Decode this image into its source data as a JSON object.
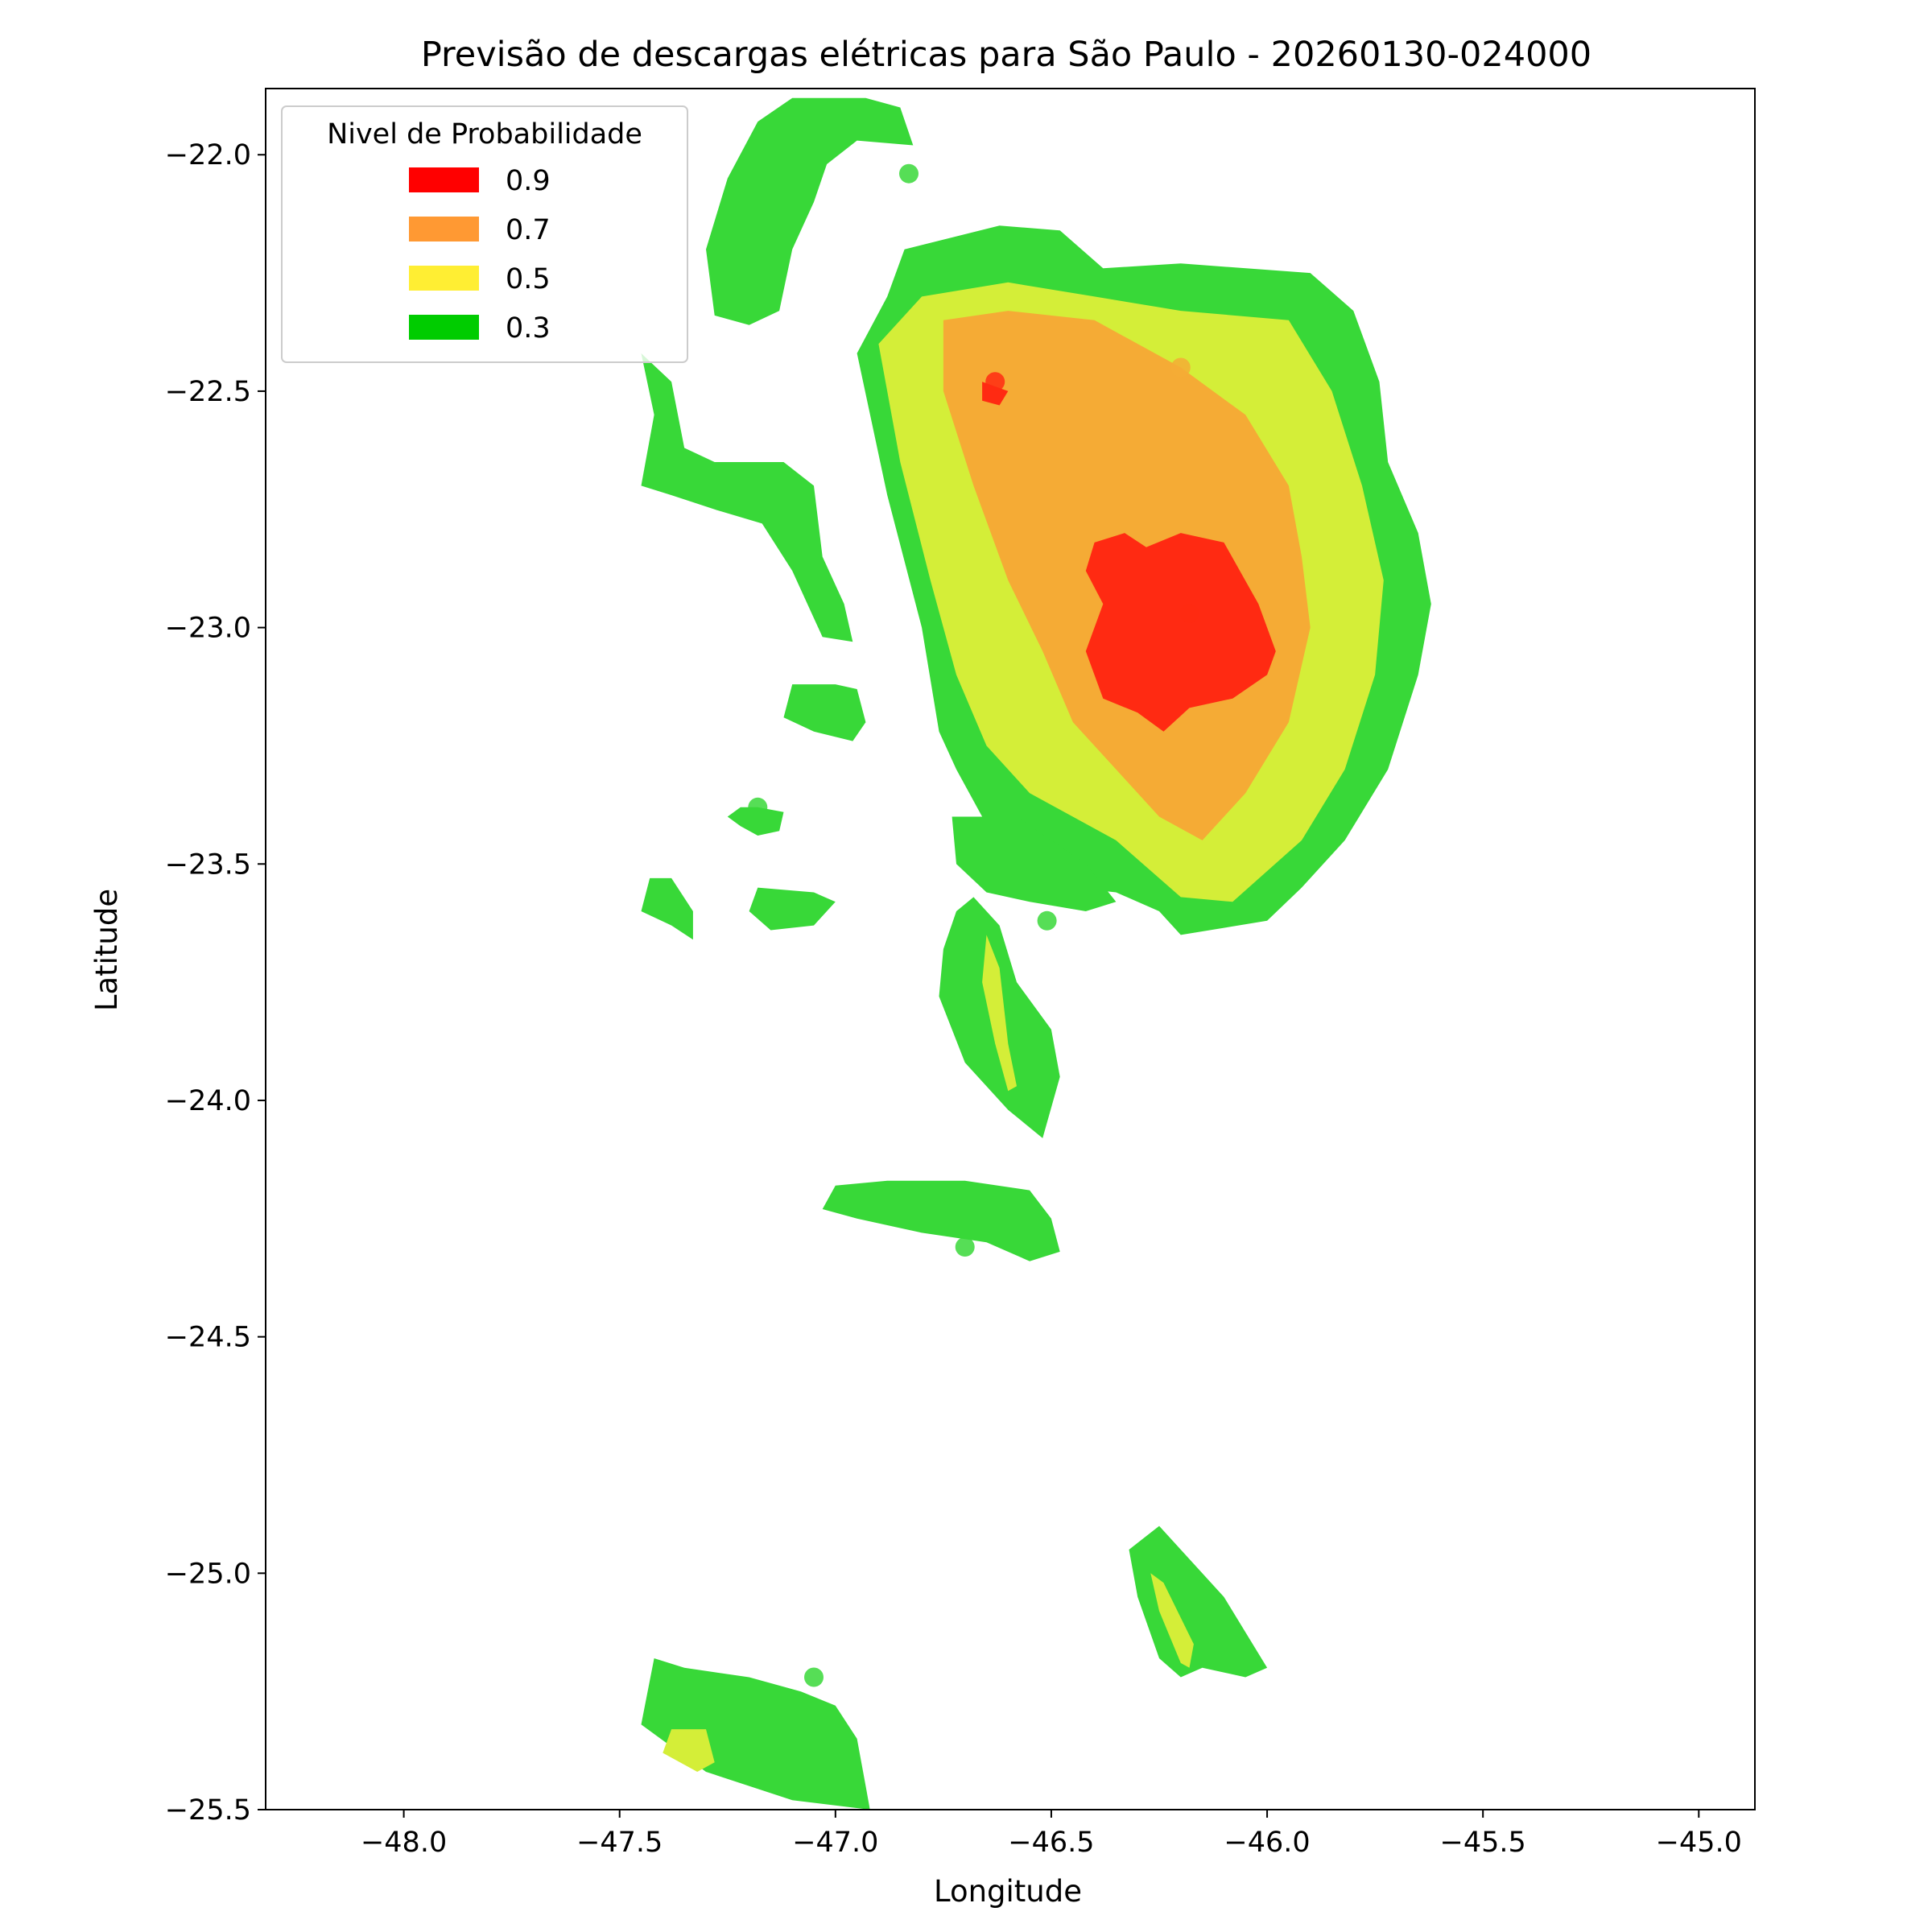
{
  "title": "Previsão de descargas elétricas para São Paulo - 20260130-024000",
  "xlabel": "Longitude",
  "ylabel": "Latitude",
  "legend": {
    "title": "Nivel de Probabilidade",
    "entries": [
      {
        "label": "0.9",
        "color": "#ff0000"
      },
      {
        "label": "0.7",
        "color": "#ff9933"
      },
      {
        "label": "0.5",
        "color": "#ffee33"
      },
      {
        "label": "0.3",
        "color": "#00cc00"
      }
    ]
  },
  "chart_data": {
    "type": "map",
    "xlim": [
      -48.32,
      -44.87
    ],
    "ylim": [
      -25.5,
      -21.86
    ],
    "xticks": [
      {
        "value": -48.0,
        "label": "−48.0"
      },
      {
        "value": -47.5,
        "label": "−47.5"
      },
      {
        "value": -47.0,
        "label": "−47.0"
      },
      {
        "value": -46.5,
        "label": "−46.5"
      },
      {
        "value": -46.0,
        "label": "−46.0"
      },
      {
        "value": -45.5,
        "label": "−45.5"
      },
      {
        "value": -45.0,
        "label": "−45.0"
      }
    ],
    "yticks": [
      {
        "value": -22.0,
        "label": "−22.0"
      },
      {
        "value": -22.5,
        "label": "−22.5"
      },
      {
        "value": -23.0,
        "label": "−23.0"
      },
      {
        "value": -23.5,
        "label": "−23.5"
      },
      {
        "value": -24.0,
        "label": "−24.0"
      },
      {
        "value": -24.5,
        "label": "−24.5"
      },
      {
        "value": -25.0,
        "label": "−25.0"
      },
      {
        "value": -25.5,
        "label": "−25.5"
      }
    ],
    "fill_colors": {
      "0.3": "#38d838",
      "0.5": "#d4ee38",
      "0.7": "#f5ab35",
      "0.9": "#ff2a12"
    },
    "regions": [
      {
        "level": "0.3",
        "points": [
          [
            -46.84,
            -22.2
          ],
          [
            -46.62,
            -22.15
          ],
          [
            -46.48,
            -22.16
          ],
          [
            -46.38,
            -22.24
          ],
          [
            -46.2,
            -22.23
          ],
          [
            -45.9,
            -22.25
          ],
          [
            -45.8,
            -22.33
          ],
          [
            -45.74,
            -22.48
          ],
          [
            -45.72,
            -22.65
          ],
          [
            -45.65,
            -22.8
          ],
          [
            -45.62,
            -22.95
          ],
          [
            -45.65,
            -23.1
          ],
          [
            -45.72,
            -23.3
          ],
          [
            -45.82,
            -23.45
          ],
          [
            -45.92,
            -23.55
          ],
          [
            -46.0,
            -23.62
          ],
          [
            -46.2,
            -23.65
          ],
          [
            -46.25,
            -23.6
          ],
          [
            -46.35,
            -23.56
          ],
          [
            -46.45,
            -23.55
          ],
          [
            -46.55,
            -23.56
          ],
          [
            -46.62,
            -23.52
          ],
          [
            -46.66,
            -23.4
          ],
          [
            -46.72,
            -23.3
          ],
          [
            -46.76,
            -23.22
          ],
          [
            -46.8,
            -23.0
          ],
          [
            -46.88,
            -22.72
          ],
          [
            -46.95,
            -22.42
          ],
          [
            -46.88,
            -22.3
          ]
        ]
      },
      {
        "level": "0.5",
        "points": [
          [
            -46.8,
            -22.3
          ],
          [
            -46.6,
            -22.27
          ],
          [
            -46.4,
            -22.3
          ],
          [
            -46.2,
            -22.33
          ],
          [
            -45.95,
            -22.35
          ],
          [
            -45.85,
            -22.5
          ],
          [
            -45.78,
            -22.7
          ],
          [
            -45.73,
            -22.9
          ],
          [
            -45.75,
            -23.1
          ],
          [
            -45.82,
            -23.3
          ],
          [
            -45.92,
            -23.45
          ],
          [
            -46.08,
            -23.58
          ],
          [
            -46.2,
            -23.57
          ],
          [
            -46.35,
            -23.45
          ],
          [
            -46.55,
            -23.35
          ],
          [
            -46.65,
            -23.25
          ],
          [
            -46.72,
            -23.1
          ],
          [
            -46.78,
            -22.9
          ],
          [
            -46.85,
            -22.65
          ],
          [
            -46.9,
            -22.4
          ]
        ]
      },
      {
        "level": "0.7",
        "points": [
          [
            -46.75,
            -22.35
          ],
          [
            -46.6,
            -22.33
          ],
          [
            -46.4,
            -22.35
          ],
          [
            -46.2,
            -22.45
          ],
          [
            -46.05,
            -22.55
          ],
          [
            -45.95,
            -22.7
          ],
          [
            -45.92,
            -22.85
          ],
          [
            -45.9,
            -23.0
          ],
          [
            -45.95,
            -23.2
          ],
          [
            -46.05,
            -23.35
          ],
          [
            -46.15,
            -23.45
          ],
          [
            -46.25,
            -23.4
          ],
          [
            -46.35,
            -23.3
          ],
          [
            -46.45,
            -23.2
          ],
          [
            -46.52,
            -23.05
          ],
          [
            -46.6,
            -22.9
          ],
          [
            -46.68,
            -22.7
          ],
          [
            -46.75,
            -22.5
          ]
        ]
      },
      {
        "level": "0.9",
        "points": [
          [
            -46.4,
            -22.82
          ],
          [
            -46.33,
            -22.8
          ],
          [
            -46.28,
            -22.83
          ],
          [
            -46.2,
            -22.8
          ],
          [
            -46.1,
            -22.82
          ],
          [
            -46.02,
            -22.95
          ],
          [
            -45.98,
            -23.05
          ],
          [
            -46.0,
            -23.1
          ],
          [
            -46.08,
            -23.15
          ],
          [
            -46.18,
            -23.17
          ],
          [
            -46.24,
            -23.22
          ],
          [
            -46.3,
            -23.18
          ],
          [
            -46.38,
            -23.15
          ],
          [
            -46.42,
            -23.05
          ],
          [
            -46.38,
            -22.95
          ],
          [
            -46.42,
            -22.88
          ]
        ]
      },
      {
        "level": "0.9",
        "points": [
          [
            -46.66,
            -22.48
          ],
          [
            -46.6,
            -22.5
          ],
          [
            -46.62,
            -22.53
          ],
          [
            -46.66,
            -22.52
          ]
        ]
      },
      {
        "level": "0.3",
        "points": [
          [
            -47.18,
            -21.93
          ],
          [
            -47.1,
            -21.88
          ],
          [
            -46.93,
            -21.88
          ],
          [
            -46.85,
            -21.9
          ],
          [
            -46.82,
            -21.98
          ],
          [
            -46.95,
            -21.97
          ],
          [
            -47.02,
            -22.02
          ],
          [
            -47.05,
            -22.1
          ],
          [
            -47.1,
            -22.2
          ],
          [
            -47.13,
            -22.33
          ],
          [
            -47.2,
            -22.36
          ],
          [
            -47.28,
            -22.34
          ],
          [
            -47.3,
            -22.2
          ],
          [
            -47.25,
            -22.05
          ]
        ]
      },
      {
        "level": "0.3",
        "points": [
          [
            -47.45,
            -22.42
          ],
          [
            -47.38,
            -22.48
          ],
          [
            -47.35,
            -22.62
          ],
          [
            -47.28,
            -22.65
          ],
          [
            -47.12,
            -22.65
          ],
          [
            -47.05,
            -22.7
          ],
          [
            -47.03,
            -22.85
          ],
          [
            -46.98,
            -22.95
          ],
          [
            -46.96,
            -23.03
          ],
          [
            -47.03,
            -23.02
          ],
          [
            -47.1,
            -22.88
          ],
          [
            -47.17,
            -22.78
          ],
          [
            -47.28,
            -22.75
          ],
          [
            -47.38,
            -22.72
          ],
          [
            -47.45,
            -22.7
          ],
          [
            -47.42,
            -22.55
          ]
        ]
      },
      {
        "level": "0.3",
        "points": [
          [
            -47.1,
            -23.12
          ],
          [
            -47.0,
            -23.12
          ],
          [
            -46.95,
            -23.13
          ],
          [
            -46.93,
            -23.2
          ],
          [
            -46.96,
            -23.24
          ],
          [
            -47.05,
            -23.22
          ],
          [
            -47.12,
            -23.19
          ]
        ]
      },
      {
        "level": "0.3",
        "points": [
          [
            -47.25,
            -23.4
          ],
          [
            -47.22,
            -23.42
          ],
          [
            -47.18,
            -23.44
          ],
          [
            -47.13,
            -23.43
          ],
          [
            -47.12,
            -23.39
          ],
          [
            -47.18,
            -23.38
          ],
          [
            -47.22,
            -23.38
          ]
        ]
      },
      {
        "level": "0.3",
        "points": [
          [
            -47.43,
            -23.53
          ],
          [
            -47.38,
            -23.53
          ],
          [
            -47.33,
            -23.6
          ],
          [
            -47.33,
            -23.66
          ],
          [
            -47.38,
            -23.63
          ],
          [
            -47.45,
            -23.6
          ]
        ]
      },
      {
        "level": "0.3",
        "points": [
          [
            -47.18,
            -23.55
          ],
          [
            -47.05,
            -23.56
          ],
          [
            -47.0,
            -23.58
          ],
          [
            -47.05,
            -23.63
          ],
          [
            -47.15,
            -23.64
          ],
          [
            -47.2,
            -23.6
          ]
        ]
      },
      {
        "level": "0.3",
        "points": [
          [
            -46.73,
            -23.4
          ],
          [
            -46.58,
            -23.4
          ],
          [
            -46.5,
            -23.45
          ],
          [
            -46.42,
            -23.5
          ],
          [
            -46.35,
            -23.58
          ],
          [
            -46.42,
            -23.6
          ],
          [
            -46.55,
            -23.58
          ],
          [
            -46.65,
            -23.56
          ],
          [
            -46.72,
            -23.5
          ]
        ]
      },
      {
        "level": "0.3",
        "points": [
          [
            -46.68,
            -23.57
          ],
          [
            -46.62,
            -23.63
          ],
          [
            -46.58,
            -23.75
          ],
          [
            -46.5,
            -23.85
          ],
          [
            -46.48,
            -23.95
          ],
          [
            -46.52,
            -24.08
          ],
          [
            -46.6,
            -24.02
          ],
          [
            -46.7,
            -23.92
          ],
          [
            -46.76,
            -23.78
          ],
          [
            -46.75,
            -23.68
          ],
          [
            -46.72,
            -23.6
          ]
        ]
      },
      {
        "level": "0.5",
        "points": [
          [
            -46.65,
            -23.65
          ],
          [
            -46.62,
            -23.72
          ],
          [
            -46.6,
            -23.88
          ],
          [
            -46.58,
            -23.97
          ],
          [
            -46.6,
            -23.98
          ],
          [
            -46.63,
            -23.88
          ],
          [
            -46.66,
            -23.75
          ]
        ]
      },
      {
        "level": "0.3",
        "points": [
          [
            -47.0,
            -24.18
          ],
          [
            -46.88,
            -24.17
          ],
          [
            -46.7,
            -24.17
          ],
          [
            -46.55,
            -24.19
          ],
          [
            -46.5,
            -24.25
          ],
          [
            -46.48,
            -24.32
          ],
          [
            -46.55,
            -24.34
          ],
          [
            -46.65,
            -24.3
          ],
          [
            -46.8,
            -24.28
          ],
          [
            -46.95,
            -24.25
          ],
          [
            -47.03,
            -24.23
          ]
        ]
      },
      {
        "level": "0.3",
        "points": [
          [
            -46.25,
            -24.9
          ],
          [
            -46.2,
            -24.95
          ],
          [
            -46.1,
            -25.05
          ],
          [
            -46.0,
            -25.2
          ],
          [
            -46.05,
            -25.22
          ],
          [
            -46.15,
            -25.2
          ],
          [
            -46.2,
            -25.22
          ],
          [
            -46.25,
            -25.18
          ],
          [
            -46.3,
            -25.05
          ],
          [
            -46.32,
            -24.95
          ]
        ]
      },
      {
        "level": "0.5",
        "points": [
          [
            -46.27,
            -25.0
          ],
          [
            -46.24,
            -25.02
          ],
          [
            -46.17,
            -25.15
          ],
          [
            -46.18,
            -25.2
          ],
          [
            -46.2,
            -25.19
          ],
          [
            -46.25,
            -25.08
          ]
        ]
      },
      {
        "level": "0.3",
        "points": [
          [
            -47.42,
            -25.18
          ],
          [
            -47.35,
            -25.2
          ],
          [
            -47.2,
            -25.22
          ],
          [
            -47.08,
            -25.25
          ],
          [
            -47.0,
            -25.28
          ],
          [
            -46.95,
            -25.35
          ],
          [
            -46.93,
            -25.45
          ],
          [
            -46.92,
            -25.5
          ],
          [
            -47.1,
            -25.48
          ],
          [
            -47.3,
            -25.42
          ],
          [
            -47.45,
            -25.32
          ]
        ]
      },
      {
        "level": "0.5",
        "points": [
          [
            -47.38,
            -25.33
          ],
          [
            -47.3,
            -25.33
          ],
          [
            -47.28,
            -25.4
          ],
          [
            -47.32,
            -25.42
          ],
          [
            -47.4,
            -25.38
          ]
        ]
      }
    ],
    "points": [
      {
        "lon": -46.63,
        "lat": -22.48,
        "level": "0.9"
      },
      {
        "lon": -46.18,
        "lat": -22.97,
        "level": "0.9"
      },
      {
        "lon": -46.2,
        "lat": -22.45,
        "level": "0.7"
      },
      {
        "lon": -46.83,
        "lat": -22.04,
        "level": "0.3"
      },
      {
        "lon": -47.18,
        "lat": -23.38,
        "level": "0.3"
      },
      {
        "lon": -46.51,
        "lat": -23.62,
        "level": "0.3"
      },
      {
        "lon": -46.7,
        "lat": -24.31,
        "level": "0.3"
      },
      {
        "lon": -47.05,
        "lat": -25.22,
        "level": "0.3"
      }
    ]
  }
}
